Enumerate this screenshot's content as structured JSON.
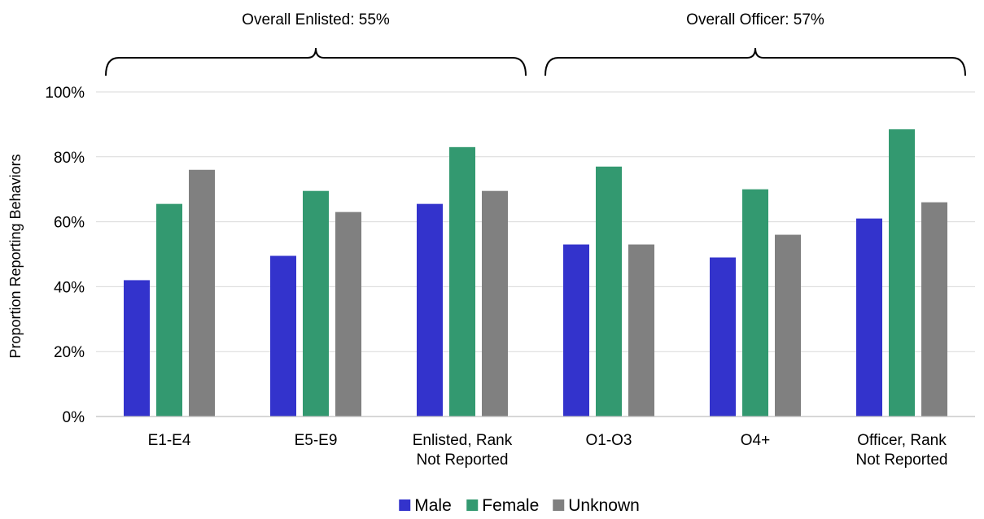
{
  "chart_data": {
    "type": "bar",
    "ylabel": "Proportion Reporting Behaviors",
    "xlabel": "",
    "ylim": [
      0,
      100
    ],
    "yticks": [
      0,
      20,
      40,
      60,
      80,
      100
    ],
    "ytick_labels": [
      "0%",
      "20%",
      "40%",
      "60%",
      "80%",
      "100%"
    ],
    "grid": true,
    "legend_position": "bottom",
    "categories": [
      [
        "E1-E4"
      ],
      [
        "E5-E9"
      ],
      [
        "Enlisted, Rank",
        "Not Reported"
      ],
      [
        "O1-O3"
      ],
      [
        "O4+"
      ],
      [
        "Officer, Rank",
        "Not Reported"
      ]
    ],
    "series": [
      {
        "name": "Male",
        "color": "#3333cc",
        "values": [
          42,
          49.5,
          65.5,
          53,
          49,
          61
        ]
      },
      {
        "name": "Female",
        "color": "#339970",
        "values": [
          65.5,
          69.5,
          83,
          77,
          70,
          88.5
        ]
      },
      {
        "name": "Unknown",
        "color": "#808080",
        "values": [
          76,
          63,
          69.5,
          53,
          56,
          66
        ]
      }
    ],
    "groups": [
      {
        "label": "Overall Enlisted: 55%",
        "first_category": 0,
        "last_category": 2
      },
      {
        "label": "Overall Officer: 57%",
        "first_category": 3,
        "last_category": 5
      }
    ]
  }
}
